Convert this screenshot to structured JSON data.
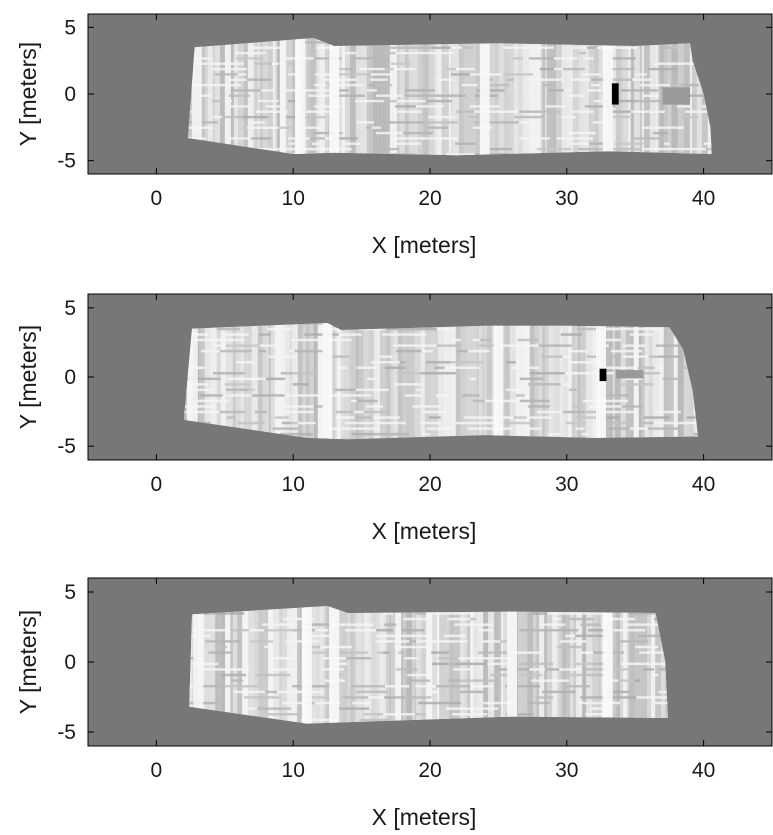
{
  "colors": {
    "background": "#777777",
    "axes_frame": "#000000",
    "map_light": "#f0f0f0",
    "map_dark": "#999999",
    "obstacle": "#000000"
  },
  "chart_data": [
    {
      "type": "heatmap",
      "xlabel": "X [meters]",
      "ylabel": "Y [meters]",
      "xlim": [
        -5,
        45
      ],
      "ylim": [
        -6,
        6
      ],
      "xticks": [
        "0",
        "10",
        "20",
        "30",
        "40"
      ],
      "yticks": [
        "5",
        "0",
        "-5"
      ],
      "grid": false,
      "map_outline": [
        [
          2.8,
          3.5
        ],
        [
          11.5,
          4.2
        ],
        [
          13,
          3.6
        ],
        [
          25,
          3.8
        ],
        [
          35,
          3.6
        ],
        [
          39,
          3.8
        ],
        [
          39.2,
          2.5
        ],
        [
          40,
          0
        ],
        [
          40.5,
          -2.5
        ],
        [
          40.6,
          -4.5
        ],
        [
          33,
          -4.3
        ],
        [
          22,
          -4.6
        ],
        [
          13,
          -4.4
        ],
        [
          10,
          -4.5
        ],
        [
          2.3,
          -3.3
        ]
      ],
      "bright_bands_x": [
        10.5,
        13,
        24,
        33
      ],
      "dark_regions": [
        {
          "x": [
            37,
            39
          ],
          "y": [
            0.5,
            -0.8
          ]
        }
      ],
      "obstacles": [
        {
          "x": [
            33.3,
            33.8
          ],
          "y": [
            0.8,
            -0.8
          ],
          "shade": "black"
        }
      ]
    },
    {
      "type": "heatmap",
      "xlabel": "X [meters]",
      "ylabel": "Y [meters]",
      "xlim": [
        -5,
        45
      ],
      "ylim": [
        -6,
        6
      ],
      "xticks": [
        "0",
        "10",
        "20",
        "30",
        "40"
      ],
      "yticks": [
        "5",
        "0",
        "-5"
      ],
      "grid": false,
      "map_outline": [
        [
          2.6,
          3.5
        ],
        [
          12.5,
          3.9
        ],
        [
          13.5,
          3.4
        ],
        [
          24,
          3.7
        ],
        [
          30,
          3.7
        ],
        [
          37.5,
          3.6
        ],
        [
          38.5,
          2
        ],
        [
          39.2,
          -1
        ],
        [
          39.6,
          -4.3
        ],
        [
          32,
          -4.4
        ],
        [
          24,
          -4.2
        ],
        [
          14,
          -4.5
        ],
        [
          11,
          -4.4
        ],
        [
          2,
          -3.1
        ]
      ],
      "bright_bands_x": [
        12.5,
        25,
        32.5
      ],
      "dark_regions": [
        {
          "x": [
            33.6,
            35.6
          ],
          "y": [
            0.5,
            -0.1
          ]
        }
      ],
      "obstacles": [
        {
          "x": [
            32.4,
            32.9
          ],
          "y": [
            0.6,
            -0.3
          ],
          "shade": "black"
        }
      ]
    },
    {
      "type": "heatmap",
      "xlabel": "X [meters]",
      "ylabel": "Y [meters]",
      "xlim": [
        -5,
        45
      ],
      "ylim": [
        -6,
        6
      ],
      "xticks": [
        "0",
        "10",
        "20",
        "30",
        "40"
      ],
      "yticks": [
        "5",
        "0",
        "-5"
      ],
      "grid": false,
      "map_outline": [
        [
          2.6,
          3.4
        ],
        [
          12.5,
          4
        ],
        [
          14,
          3.5
        ],
        [
          26,
          3.6
        ],
        [
          36.5,
          3.5
        ],
        [
          37.2,
          0
        ],
        [
          37.4,
          -4
        ],
        [
          26,
          -3.9
        ],
        [
          14,
          -4.3
        ],
        [
          11,
          -4.4
        ],
        [
          2.4,
          -3.2
        ]
      ],
      "bright_bands_x": [
        11,
        13,
        26,
        33
      ],
      "dark_regions": [],
      "obstacles": []
    }
  ]
}
